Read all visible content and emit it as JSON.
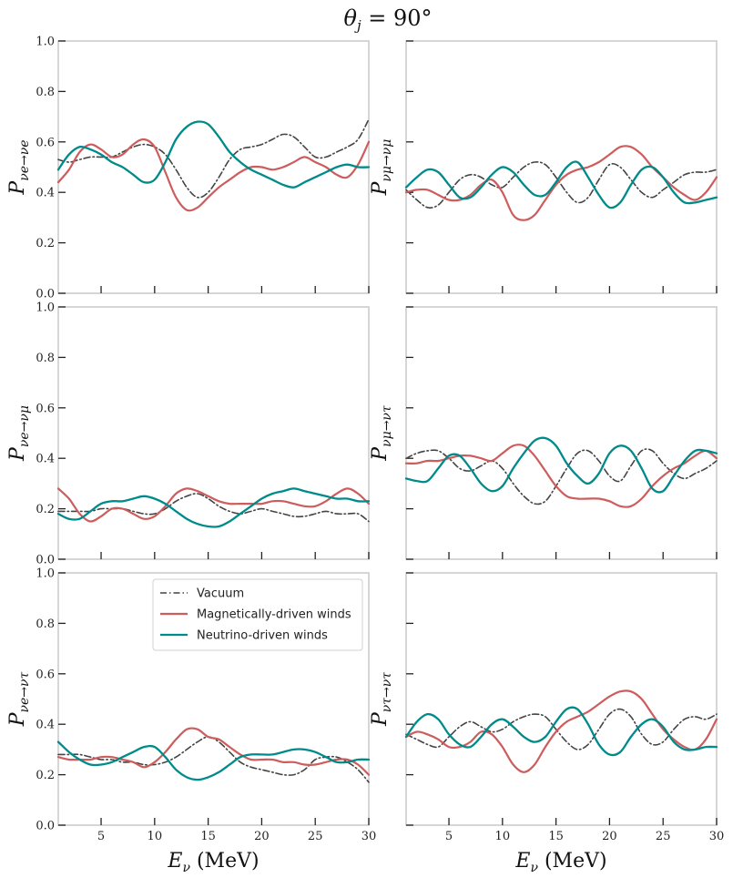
{
  "title": "θj = 90°",
  "title_parts": {
    "theta": "θ",
    "sub": "j",
    "rest": " = 90°"
  },
  "xlabel": {
    "main": "E",
    "sub": "ν",
    "unit": " (MeV)"
  },
  "x_ticks": [
    5,
    10,
    15,
    20,
    25,
    30
  ],
  "y_ticks": [
    0.0,
    0.2,
    0.4,
    0.6,
    0.8,
    1.0
  ],
  "y_tick_labels": [
    "0.0",
    "0.2",
    "0.4",
    "0.6",
    "0.8",
    "1.0"
  ],
  "xlim": [
    1,
    30
  ],
  "ylim": [
    0,
    1
  ],
  "colors": {
    "vacuum": "#444444",
    "magnetic": "#cd5c5c",
    "neutrino": "#008b8b",
    "frame": "#cccccc"
  },
  "legend": [
    {
      "key": "vacuum",
      "label": "Vacuum"
    },
    {
      "key": "magnetic",
      "label": "Magnetically-driven winds"
    },
    {
      "key": "neutrino",
      "label": "Neutrino-driven winds"
    }
  ],
  "chart_data": [
    {
      "type": "line",
      "ylabel": {
        "main": "P",
        "sub": "νe→νe"
      },
      "x": [
        1,
        2,
        3,
        4,
        5,
        6,
        7,
        8,
        9,
        10,
        11,
        12,
        13,
        14,
        15,
        16,
        17,
        18,
        19,
        20,
        21,
        22,
        23,
        24,
        25,
        26,
        27,
        28,
        29,
        30
      ],
      "series": [
        {
          "name": "Vacuum",
          "key": "vacuum",
          "values": [
            0.53,
            0.52,
            0.53,
            0.54,
            0.54,
            0.54,
            0.56,
            0.58,
            0.59,
            0.58,
            0.55,
            0.49,
            0.42,
            0.38,
            0.4,
            0.46,
            0.53,
            0.57,
            0.58,
            0.59,
            0.61,
            0.63,
            0.62,
            0.58,
            0.54,
            0.54,
            0.56,
            0.58,
            0.61,
            0.69
          ]
        },
        {
          "name": "Magnetically-driven winds",
          "key": "magnetic",
          "values": [
            0.44,
            0.49,
            0.56,
            0.59,
            0.57,
            0.54,
            0.55,
            0.59,
            0.61,
            0.58,
            0.48,
            0.38,
            0.33,
            0.34,
            0.38,
            0.42,
            0.45,
            0.48,
            0.5,
            0.5,
            0.49,
            0.5,
            0.52,
            0.54,
            0.52,
            0.5,
            0.47,
            0.46,
            0.51,
            0.6
          ]
        },
        {
          "name": "Neutrino-driven winds",
          "key": "neutrino",
          "values": [
            0.49,
            0.55,
            0.58,
            0.57,
            0.55,
            0.52,
            0.5,
            0.47,
            0.44,
            0.45,
            0.52,
            0.61,
            0.66,
            0.68,
            0.67,
            0.62,
            0.56,
            0.52,
            0.49,
            0.47,
            0.45,
            0.43,
            0.42,
            0.44,
            0.46,
            0.48,
            0.5,
            0.51,
            0.5,
            0.5
          ]
        }
      ]
    },
    {
      "type": "line",
      "ylabel": {
        "main": "P",
        "sub": "νμ→νμ"
      },
      "x": [
        1,
        2,
        3,
        4,
        5,
        6,
        7,
        8,
        9,
        10,
        11,
        12,
        13,
        14,
        15,
        16,
        17,
        18,
        19,
        20,
        21,
        22,
        23,
        24,
        25,
        26,
        27,
        28,
        29,
        30
      ],
      "series": [
        {
          "name": "Vacuum",
          "key": "vacuum",
          "values": [
            0.41,
            0.37,
            0.34,
            0.35,
            0.4,
            0.45,
            0.47,
            0.46,
            0.43,
            0.42,
            0.46,
            0.5,
            0.52,
            0.51,
            0.46,
            0.4,
            0.36,
            0.38,
            0.45,
            0.51,
            0.5,
            0.45,
            0.4,
            0.38,
            0.41,
            0.44,
            0.47,
            0.48,
            0.48,
            0.49
          ]
        },
        {
          "name": "Magnetically-driven winds",
          "key": "magnetic",
          "values": [
            0.4,
            0.41,
            0.41,
            0.39,
            0.37,
            0.37,
            0.39,
            0.43,
            0.45,
            0.4,
            0.31,
            0.29,
            0.31,
            0.37,
            0.43,
            0.47,
            0.49,
            0.5,
            0.52,
            0.55,
            0.58,
            0.58,
            0.55,
            0.5,
            0.46,
            0.42,
            0.39,
            0.37,
            0.4,
            0.46
          ]
        },
        {
          "name": "Neutrino-driven winds",
          "key": "neutrino",
          "values": [
            0.42,
            0.46,
            0.49,
            0.48,
            0.43,
            0.38,
            0.38,
            0.42,
            0.47,
            0.5,
            0.48,
            0.43,
            0.39,
            0.39,
            0.44,
            0.5,
            0.52,
            0.46,
            0.39,
            0.34,
            0.36,
            0.43,
            0.49,
            0.5,
            0.46,
            0.4,
            0.36,
            0.36,
            0.37,
            0.38
          ]
        }
      ]
    },
    {
      "type": "line",
      "ylabel": {
        "main": "P",
        "sub": "νe→νμ"
      },
      "x": [
        1,
        2,
        3,
        4,
        5,
        6,
        7,
        8,
        9,
        10,
        11,
        12,
        13,
        14,
        15,
        16,
        17,
        18,
        19,
        20,
        21,
        22,
        23,
        24,
        25,
        26,
        27,
        28,
        29,
        30
      ],
      "series": [
        {
          "name": "Vacuum",
          "key": "vacuum",
          "values": [
            0.19,
            0.19,
            0.19,
            0.19,
            0.2,
            0.2,
            0.2,
            0.19,
            0.18,
            0.18,
            0.2,
            0.23,
            0.25,
            0.26,
            0.24,
            0.21,
            0.19,
            0.18,
            0.19,
            0.2,
            0.19,
            0.18,
            0.17,
            0.17,
            0.18,
            0.19,
            0.18,
            0.18,
            0.18,
            0.15
          ]
        },
        {
          "name": "Magnetically-driven winds",
          "key": "magnetic",
          "values": [
            0.28,
            0.24,
            0.18,
            0.15,
            0.17,
            0.2,
            0.2,
            0.18,
            0.16,
            0.17,
            0.21,
            0.26,
            0.28,
            0.27,
            0.25,
            0.23,
            0.22,
            0.22,
            0.22,
            0.22,
            0.23,
            0.23,
            0.22,
            0.21,
            0.21,
            0.23,
            0.26,
            0.28,
            0.26,
            0.22
          ]
        },
        {
          "name": "Neutrino-driven winds",
          "key": "neutrino",
          "values": [
            0.18,
            0.16,
            0.16,
            0.19,
            0.22,
            0.23,
            0.23,
            0.24,
            0.25,
            0.24,
            0.22,
            0.19,
            0.16,
            0.14,
            0.13,
            0.13,
            0.15,
            0.18,
            0.21,
            0.24,
            0.26,
            0.27,
            0.28,
            0.27,
            0.26,
            0.25,
            0.24,
            0.24,
            0.23,
            0.23
          ]
        }
      ]
    },
    {
      "type": "line",
      "ylabel": {
        "main": "P",
        "sub": "νμ→ντ"
      },
      "x": [
        1,
        2,
        3,
        4,
        5,
        6,
        7,
        8,
        9,
        10,
        11,
        12,
        13,
        14,
        15,
        16,
        17,
        18,
        19,
        20,
        21,
        22,
        23,
        24,
        25,
        26,
        27,
        28,
        29,
        30
      ],
      "series": [
        {
          "name": "Vacuum",
          "key": "vacuum",
          "values": [
            0.4,
            0.42,
            0.43,
            0.43,
            0.4,
            0.36,
            0.35,
            0.37,
            0.39,
            0.36,
            0.3,
            0.25,
            0.22,
            0.23,
            0.29,
            0.36,
            0.42,
            0.43,
            0.39,
            0.33,
            0.31,
            0.37,
            0.43,
            0.43,
            0.38,
            0.34,
            0.32,
            0.34,
            0.36,
            0.39
          ]
        },
        {
          "name": "Magnetically-driven winds",
          "key": "magnetic",
          "values": [
            0.38,
            0.38,
            0.39,
            0.39,
            0.4,
            0.41,
            0.41,
            0.4,
            0.39,
            0.42,
            0.45,
            0.45,
            0.41,
            0.35,
            0.29,
            0.25,
            0.24,
            0.24,
            0.24,
            0.23,
            0.21,
            0.21,
            0.24,
            0.29,
            0.33,
            0.36,
            0.38,
            0.41,
            0.43,
            0.4
          ]
        },
        {
          "name": "Neutrino-driven winds",
          "key": "neutrino",
          "values": [
            0.32,
            0.31,
            0.31,
            0.36,
            0.41,
            0.41,
            0.36,
            0.3,
            0.27,
            0.29,
            0.36,
            0.42,
            0.47,
            0.48,
            0.45,
            0.38,
            0.33,
            0.3,
            0.34,
            0.42,
            0.45,
            0.43,
            0.36,
            0.28,
            0.27,
            0.33,
            0.39,
            0.43,
            0.43,
            0.42
          ]
        }
      ]
    },
    {
      "type": "line",
      "ylabel": {
        "main": "P",
        "sub": "νe→ντ"
      },
      "x": [
        1,
        2,
        3,
        4,
        5,
        6,
        7,
        8,
        9,
        10,
        11,
        12,
        13,
        14,
        15,
        16,
        17,
        18,
        19,
        20,
        21,
        22,
        23,
        24,
        25,
        26,
        27,
        28,
        29,
        30
      ],
      "series": [
        {
          "name": "Vacuum",
          "key": "vacuum",
          "values": [
            0.28,
            0.28,
            0.28,
            0.27,
            0.26,
            0.26,
            0.25,
            0.25,
            0.24,
            0.24,
            0.25,
            0.27,
            0.3,
            0.33,
            0.35,
            0.33,
            0.29,
            0.25,
            0.23,
            0.22,
            0.21,
            0.2,
            0.2,
            0.22,
            0.26,
            0.27,
            0.27,
            0.25,
            0.22,
            0.17
          ]
        },
        {
          "name": "Magnetically-driven winds",
          "key": "magnetic",
          "values": [
            0.27,
            0.26,
            0.26,
            0.26,
            0.27,
            0.27,
            0.26,
            0.25,
            0.23,
            0.25,
            0.29,
            0.34,
            0.38,
            0.38,
            0.35,
            0.34,
            0.31,
            0.28,
            0.26,
            0.26,
            0.26,
            0.25,
            0.25,
            0.24,
            0.24,
            0.25,
            0.26,
            0.26,
            0.24,
            0.2
          ]
        },
        {
          "name": "Neutrino-driven winds",
          "key": "neutrino",
          "values": [
            0.33,
            0.29,
            0.26,
            0.24,
            0.24,
            0.25,
            0.27,
            0.29,
            0.31,
            0.31,
            0.27,
            0.22,
            0.19,
            0.18,
            0.19,
            0.21,
            0.24,
            0.27,
            0.28,
            0.28,
            0.28,
            0.29,
            0.3,
            0.3,
            0.29,
            0.27,
            0.25,
            0.25,
            0.26,
            0.26
          ]
        }
      ]
    },
    {
      "type": "line",
      "ylabel": {
        "main": "P",
        "sub": "ντ→ντ"
      },
      "x": [
        1,
        2,
        3,
        4,
        5,
        6,
        7,
        8,
        9,
        10,
        11,
        12,
        13,
        14,
        15,
        16,
        17,
        18,
        19,
        20,
        21,
        22,
        23,
        24,
        25,
        26,
        27,
        28,
        29,
        30
      ],
      "series": [
        {
          "name": "Vacuum",
          "key": "vacuum",
          "values": [
            0.36,
            0.34,
            0.32,
            0.31,
            0.35,
            0.39,
            0.41,
            0.39,
            0.37,
            0.38,
            0.41,
            0.43,
            0.44,
            0.43,
            0.38,
            0.33,
            0.3,
            0.32,
            0.38,
            0.44,
            0.46,
            0.43,
            0.36,
            0.32,
            0.33,
            0.38,
            0.42,
            0.43,
            0.42,
            0.44
          ]
        },
        {
          "name": "Magnetically-driven winds",
          "key": "magnetic",
          "values": [
            0.35,
            0.37,
            0.36,
            0.34,
            0.31,
            0.31,
            0.33,
            0.37,
            0.36,
            0.31,
            0.24,
            0.21,
            0.24,
            0.31,
            0.37,
            0.41,
            0.43,
            0.45,
            0.48,
            0.51,
            0.53,
            0.53,
            0.5,
            0.44,
            0.38,
            0.34,
            0.31,
            0.3,
            0.34,
            0.42
          ]
        },
        {
          "name": "Neutrino-driven winds",
          "key": "neutrino",
          "values": [
            0.35,
            0.41,
            0.44,
            0.42,
            0.36,
            0.32,
            0.31,
            0.35,
            0.4,
            0.42,
            0.39,
            0.35,
            0.33,
            0.35,
            0.41,
            0.46,
            0.46,
            0.4,
            0.32,
            0.28,
            0.29,
            0.35,
            0.4,
            0.42,
            0.39,
            0.33,
            0.3,
            0.3,
            0.31,
            0.31
          ]
        }
      ]
    }
  ]
}
